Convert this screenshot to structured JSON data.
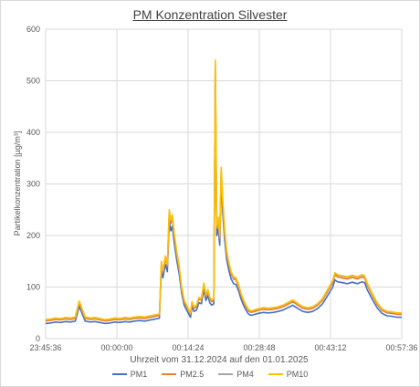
{
  "chart_data": {
    "type": "line",
    "title": "PM Konzentration Silvester",
    "xlabel": "Uhrzeit vom 31.12.2024 auf den 01.01.2025",
    "ylabel": "Partikelkonzentration [µg/m³]",
    "ylim": [
      0,
      600
    ],
    "yticks": [
      0,
      100,
      200,
      300,
      400,
      500,
      600
    ],
    "xticks": [
      "23:45:36",
      "00:00:00",
      "00:14:24",
      "00:28:48",
      "00:43:12",
      "00:57:36"
    ],
    "grid": true,
    "legend_position": "bottom",
    "x_range_minutes": [
      0,
      72
    ],
    "series": [
      {
        "name": "PM1",
        "color": "#4472c4",
        "offset": -5,
        "scale": 0.93
      },
      {
        "name": "PM2.5",
        "color": "#ed7d31",
        "offset": -2,
        "scale": 0.98
      },
      {
        "name": "PM4",
        "color": "#a5a5a5",
        "offset": 0,
        "scale": 0.99
      },
      {
        "name": "PM10",
        "color": "#ffc000",
        "offset": 0,
        "scale": 1.0
      }
    ],
    "pm10_profile": [
      [
        0,
        37
      ],
      [
        1,
        38
      ],
      [
        2,
        40
      ],
      [
        3,
        39
      ],
      [
        4,
        41
      ],
      [
        5,
        40
      ],
      [
        6,
        42
      ],
      [
        6.8,
        73
      ],
      [
        7.2,
        62
      ],
      [
        8,
        42
      ],
      [
        9,
        40
      ],
      [
        10,
        41
      ],
      [
        11,
        39
      ],
      [
        12,
        37
      ],
      [
        13,
        38
      ],
      [
        14,
        40
      ],
      [
        15,
        39
      ],
      [
        16,
        41
      ],
      [
        17,
        40
      ],
      [
        18,
        42
      ],
      [
        19,
        43
      ],
      [
        20,
        42
      ],
      [
        21,
        44
      ],
      [
        22,
        46
      ],
      [
        23,
        48
      ],
      [
        23.4,
        150
      ],
      [
        23.7,
        132
      ],
      [
        24.2,
        160
      ],
      [
        24.6,
        145
      ],
      [
        25,
        250
      ],
      [
        25.3,
        230
      ],
      [
        25.6,
        240
      ],
      [
        26,
        205
      ],
      [
        26.5,
        170
      ],
      [
        27,
        140
      ],
      [
        27.5,
        100
      ],
      [
        28,
        75
      ],
      [
        28.5,
        65
      ],
      [
        29,
        55
      ],
      [
        29.3,
        50
      ],
      [
        29.6,
        72
      ],
      [
        30,
        62
      ],
      [
        30.5,
        65
      ],
      [
        31,
        80
      ],
      [
        31.5,
        78
      ],
      [
        32,
        108
      ],
      [
        32.4,
        85
      ],
      [
        32.8,
        95
      ],
      [
        33.2,
        80
      ],
      [
        33.6,
        75
      ],
      [
        34,
        78
      ],
      [
        34.3,
        540
      ],
      [
        34.6,
        220
      ],
      [
        34.9,
        235
      ],
      [
        35.2,
        200
      ],
      [
        35.5,
        332
      ],
      [
        35.8,
        270
      ],
      [
        36.2,
        210
      ],
      [
        36.6,
        170
      ],
      [
        37,
        150
      ],
      [
        37.5,
        130
      ],
      [
        38,
        120
      ],
      [
        38.5,
        118
      ],
      [
        39,
        105
      ],
      [
        39.5,
        88
      ],
      [
        40,
        75
      ],
      [
        40.5,
        65
      ],
      [
        41,
        57
      ],
      [
        41.5,
        54
      ],
      [
        42,
        55
      ],
      [
        43,
        58
      ],
      [
        44,
        60
      ],
      [
        45,
        59
      ],
      [
        46,
        60
      ],
      [
        47,
        62
      ],
      [
        48,
        65
      ],
      [
        49,
        70
      ],
      [
        50,
        75
      ],
      [
        51,
        68
      ],
      [
        52,
        62
      ],
      [
        53,
        60
      ],
      [
        54,
        62
      ],
      [
        55,
        68
      ],
      [
        56,
        78
      ],
      [
        57,
        95
      ],
      [
        58,
        112
      ],
      [
        58.5,
        128
      ],
      [
        59,
        124
      ],
      [
        60,
        122
      ],
      [
        61,
        120
      ],
      [
        62,
        123
      ],
      [
        63,
        120
      ],
      [
        64,
        124
      ],
      [
        64.5,
        122
      ],
      [
        65,
        108
      ],
      [
        66,
        88
      ],
      [
        67,
        70
      ],
      [
        68,
        58
      ],
      [
        69,
        53
      ],
      [
        70,
        52
      ],
      [
        71,
        50
      ],
      [
        72,
        50
      ]
    ]
  }
}
